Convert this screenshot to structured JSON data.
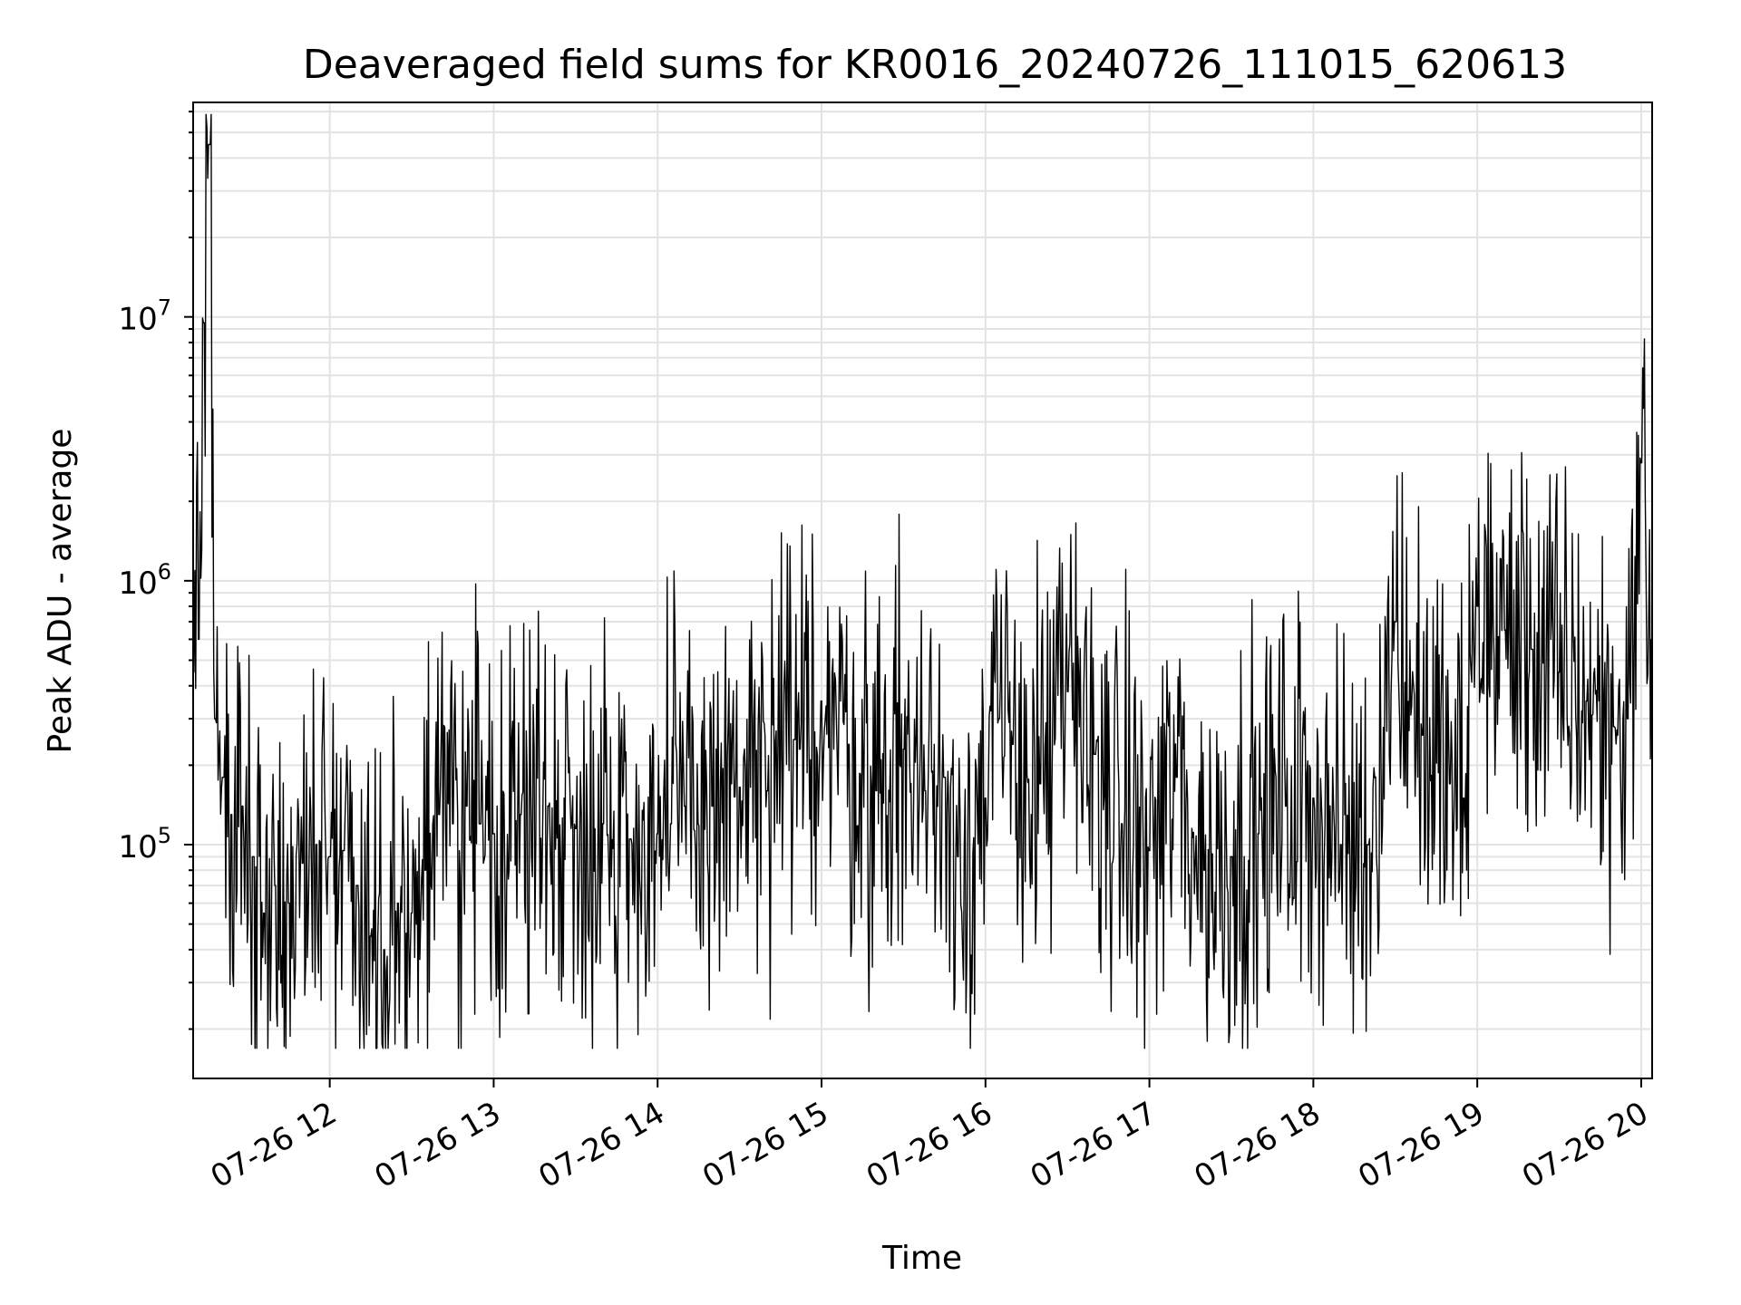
{
  "chart_data": {
    "type": "line",
    "title": "Deaveraged field sums for KR0016_20240726_111015_620613",
    "xlabel": "Time",
    "ylabel": "Peak ADU - average",
    "yscale": "log",
    "ylim": [
      13000,
      65000000
    ],
    "xlim": [
      "2024-07-26 11:10",
      "2024-07-26 20:04"
    ],
    "grid": true,
    "x_ticks": [
      "07-26 12",
      "07-26 13",
      "07-26 14",
      "07-26 15",
      "07-26 16",
      "07-26 17",
      "07-26 18",
      "07-26 19",
      "07-26 20"
    ],
    "y_ticks": [
      {
        "value": 100000,
        "base": "10",
        "exp": "5"
      },
      {
        "value": 1000000,
        "base": "10",
        "exp": "6"
      },
      {
        "value": 10000000,
        "base": "10",
        "exp": "7"
      }
    ],
    "series": [
      {
        "color": "#000000",
        "x": [
          "2024-07-26 11:10",
          "2024-07-26 11:12",
          "2024-07-26 11:14",
          "2024-07-26 11:16",
          "2024-07-26 11:18",
          "2024-07-26 11:21",
          "2024-07-26 11:24",
          "2024-07-26 11:28",
          "2024-07-26 11:32",
          "2024-07-26 11:36",
          "2024-07-26 11:40",
          "2024-07-26 11:45",
          "2024-07-26 11:50",
          "2024-07-26 11:55",
          "2024-07-26 12:00",
          "2024-07-26 12:05",
          "2024-07-26 12:10",
          "2024-07-26 12:15",
          "2024-07-26 12:20",
          "2024-07-26 12:25",
          "2024-07-26 12:30",
          "2024-07-26 12:35",
          "2024-07-26 12:40",
          "2024-07-26 12:45",
          "2024-07-26 12:50",
          "2024-07-26 12:55",
          "2024-07-26 13:00",
          "2024-07-26 13:10",
          "2024-07-26 13:20",
          "2024-07-26 13:30",
          "2024-07-26 13:40",
          "2024-07-26 13:50",
          "2024-07-26 14:00",
          "2024-07-26 14:05",
          "2024-07-26 14:10",
          "2024-07-26 14:20",
          "2024-07-26 14:30",
          "2024-07-26 14:40",
          "2024-07-26 14:50",
          "2024-07-26 14:52",
          "2024-07-26 15:00",
          "2024-07-26 15:10",
          "2024-07-26 15:20",
          "2024-07-26 15:30",
          "2024-07-26 15:38",
          "2024-07-26 15:45",
          "2024-07-26 15:50",
          "2024-07-26 16:00",
          "2024-07-26 16:05",
          "2024-07-26 16:10",
          "2024-07-26 16:20",
          "2024-07-26 16:30",
          "2024-07-26 16:40",
          "2024-07-26 16:50",
          "2024-07-26 17:00",
          "2024-07-26 17:10",
          "2024-07-26 17:20",
          "2024-07-26 17:30",
          "2024-07-26 17:40",
          "2024-07-26 17:50",
          "2024-07-26 18:00",
          "2024-07-26 18:10",
          "2024-07-26 18:20",
          "2024-07-26 18:30",
          "2024-07-26 18:40",
          "2024-07-26 18:50",
          "2024-07-26 18:55",
          "2024-07-26 19:00",
          "2024-07-26 19:10",
          "2024-07-26 19:20",
          "2024-07-26 19:30",
          "2024-07-26 19:40",
          "2024-07-26 19:50",
          "2024-07-26 19:55",
          "2024-07-26 20:00",
          "2024-07-26 20:04"
        ],
        "values": [
          450000,
          600000,
          9500000,
          45000000,
          300000,
          180000,
          130000,
          140000,
          90000,
          55000,
          70000,
          60000,
          85000,
          100000,
          90000,
          95000,
          70000,
          45000,
          40000,
          60000,
          55000,
          80000,
          130000,
          120000,
          140000,
          120000,
          110000,
          130000,
          140000,
          115000,
          120000,
          105000,
          110000,
          120000,
          140000,
          140000,
          165000,
          160000,
          250000,
          230000,
          350000,
          240000,
          160000,
          230000,
          160000,
          180000,
          90000,
          150000,
          300000,
          240000,
          170000,
          380000,
          220000,
          120000,
          95000,
          180000,
          80000,
          90000,
          110000,
          140000,
          150000,
          100000,
          100000,
          700000,
          260000,
          170000,
          150000,
          800000,
          650000,
          550000,
          450000,
          350000,
          280000,
          300000,
          2800000,
          600000
        ]
      }
    ]
  }
}
